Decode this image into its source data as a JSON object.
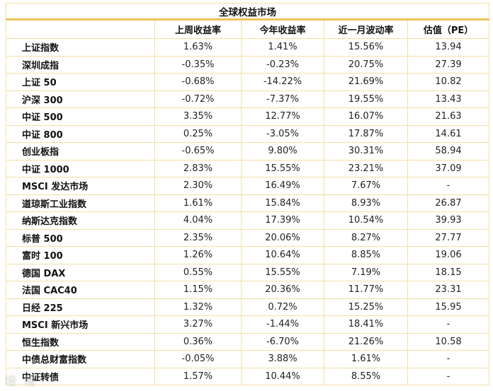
{
  "table": {
    "title": "全球权益市场",
    "columns": [
      "",
      "上周收益率",
      "今年收益率",
      "近一月波动率",
      "估值（PE）"
    ],
    "rows": [
      {
        "name": "上证指数",
        "week": "1.63%",
        "ytd": "1.41%",
        "vol": "15.56%",
        "pe": "13.94"
      },
      {
        "name": "深圳成指",
        "week": "-0.35%",
        "ytd": "-0.23%",
        "vol": "20.75%",
        "pe": "27.39"
      },
      {
        "name": "上证 50",
        "week": "-0.68%",
        "ytd": "-14.22%",
        "vol": "21.69%",
        "pe": "10.82"
      },
      {
        "name": "沪深 300",
        "week": "-0.72%",
        "ytd": "-7.37%",
        "vol": "19.55%",
        "pe": "13.43"
      },
      {
        "name": "中证 500",
        "week": "3.35%",
        "ytd": "12.77%",
        "vol": "16.07%",
        "pe": "21.63"
      },
      {
        "name": "中证 800",
        "week": "0.25%",
        "ytd": "-3.05%",
        "vol": "17.87%",
        "pe": "14.61"
      },
      {
        "name": "创业板指",
        "week": "-0.65%",
        "ytd": "9.80%",
        "vol": "30.31%",
        "pe": "58.94"
      },
      {
        "name": "中证 1000",
        "week": "2.83%",
        "ytd": "15.55%",
        "vol": "23.21%",
        "pe": "37.09"
      },
      {
        "name": "MSCI 发达市场",
        "week": "2.30%",
        "ytd": "16.49%",
        "vol": "7.67%",
        "pe": "-"
      },
      {
        "name": "道琼斯工业指数",
        "week": "1.61%",
        "ytd": "15.84%",
        "vol": "8.93%",
        "pe": "26.87"
      },
      {
        "name": "纳斯达克指数",
        "week": "4.04%",
        "ytd": "17.39%",
        "vol": "10.54%",
        "pe": "39.93"
      },
      {
        "name": "标普 500",
        "week": "2.35%",
        "ytd": "20.06%",
        "vol": "8.27%",
        "pe": "27.77"
      },
      {
        "name": "富时 100",
        "week": "1.26%",
        "ytd": "10.64%",
        "vol": "8.85%",
        "pe": "19.06"
      },
      {
        "name": "德国 DAX",
        "week": "0.55%",
        "ytd": "15.55%",
        "vol": "7.19%",
        "pe": "18.15"
      },
      {
        "name": "法国 CAC40",
        "week": "1.15%",
        "ytd": "20.36%",
        "vol": "11.77%",
        "pe": "23.31"
      },
      {
        "name": "日经 225",
        "week": "1.32%",
        "ytd": "0.72%",
        "vol": "15.25%",
        "pe": "15.95"
      },
      {
        "name": "MSCI 新兴市场",
        "week": "3.27%",
        "ytd": "-1.44%",
        "vol": "18.41%",
        "pe": "-"
      },
      {
        "name": "恒生指数",
        "week": "0.36%",
        "ytd": "-6.70%",
        "vol": "21.26%",
        "pe": "10.58"
      },
      {
        "name": "中债总财富指数",
        "week": "-0.05%",
        "ytd": "3.88%",
        "vol": "1.61%",
        "pe": "-"
      },
      {
        "name": "中证转债",
        "week": "1.57%",
        "ytd": "10.44%",
        "vol": "8.55%",
        "pe": "-"
      }
    ]
  },
  "watermark": "培境",
  "colors": {
    "accent_gold": "#eec45c",
    "border_light": "#f2dfa6",
    "text": "#1c1c1c",
    "watermark_gray": "#bdbdbd"
  }
}
